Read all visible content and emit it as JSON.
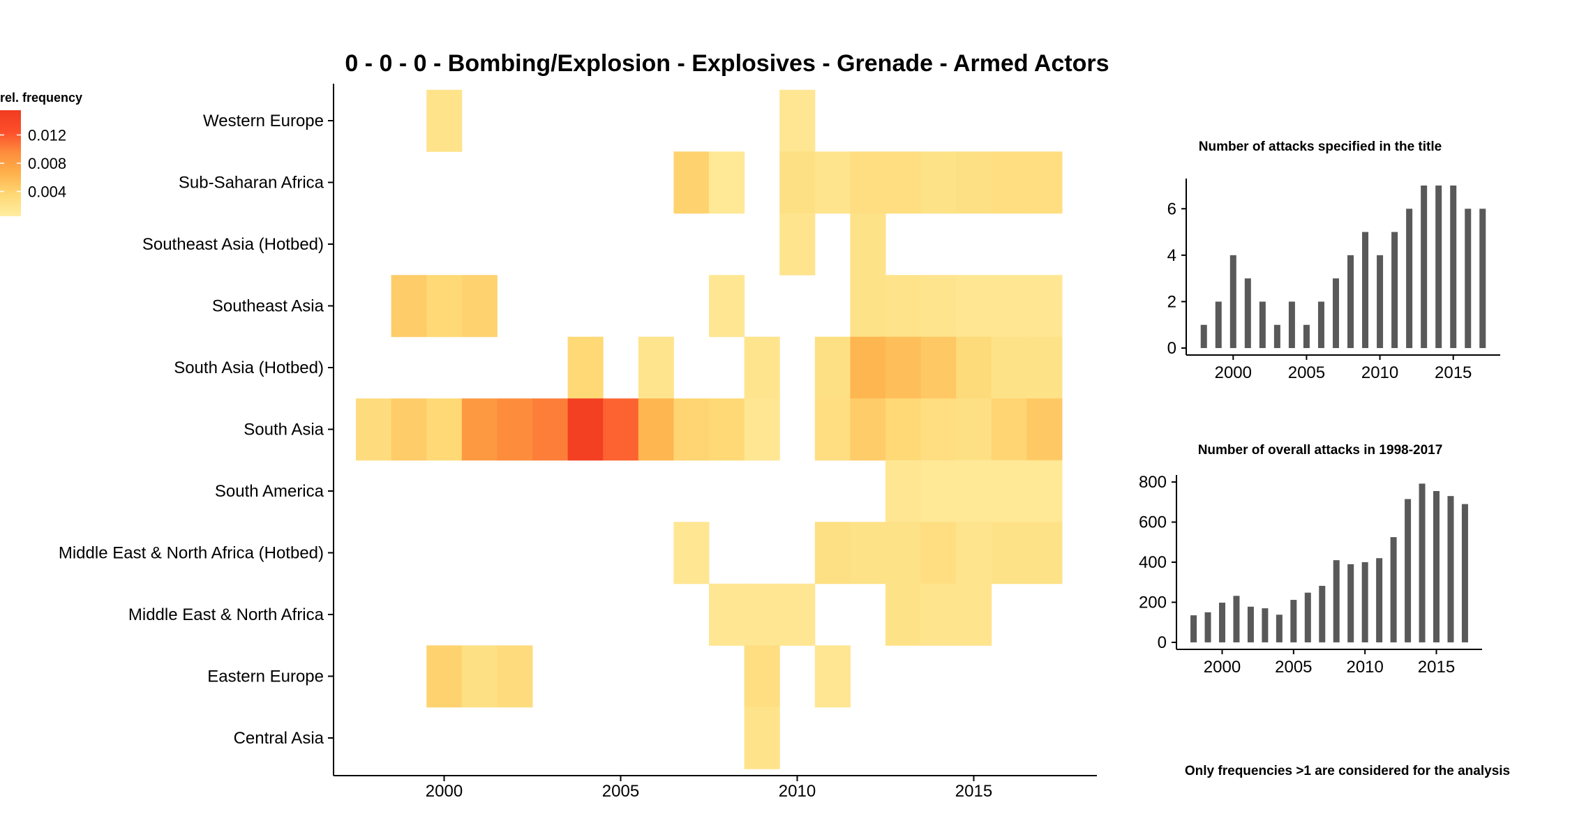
{
  "chart_data": [
    {
      "type": "heatmap",
      "title": "0 - 0 - 0 - Bombing/Explosion - Explosives - Grenade - Armed Actors",
      "xlabel": "",
      "ylabel": "",
      "x_ticks": [
        2000,
        2005,
        2010,
        2015
      ],
      "xlim": [
        1997.5,
        2017.5
      ],
      "regions": [
        "Western Europe",
        "Sub-Saharan Africa",
        "Southeast Asia (Hotbed)",
        "Southeast Asia",
        "South Asia (Hotbed)",
        "South Asia",
        "South America",
        "Middle East & North Africa (Hotbed)",
        "Middle East & North Africa",
        "Eastern Europe",
        "Central Asia"
      ],
      "cells": [
        {
          "region": "Western Europe",
          "values": {
            "2000": 0.002,
            "2010": 0.0015
          }
        },
        {
          "region": "Sub-Saharan Africa",
          "values": {
            "2007": 0.004,
            "2008": 0.0012,
            "2010": 0.0025,
            "2011": 0.0018,
            "2012": 0.0028,
            "2013": 0.0028,
            "2014": 0.0022,
            "2015": 0.0025,
            "2016": 0.0028,
            "2017": 0.0028
          }
        },
        {
          "region": "Southeast Asia (Hotbed)",
          "values": {
            "2010": 0.0018,
            "2012": 0.0022
          }
        },
        {
          "region": "Southeast Asia",
          "values": {
            "1999": 0.0045,
            "2000": 0.0035,
            "2001": 0.004,
            "2008": 0.0015,
            "2012": 0.0022,
            "2013": 0.002,
            "2014": 0.0018,
            "2015": 0.0015,
            "2016": 0.0015,
            "2017": 0.0015
          }
        },
        {
          "region": "South Asia (Hotbed)",
          "values": {
            "2004": 0.0035,
            "2006": 0.0018,
            "2009": 0.0018,
            "2011": 0.0025,
            "2012": 0.0062,
            "2013": 0.0055,
            "2014": 0.0048,
            "2015": 0.0032,
            "2016": 0.0022,
            "2017": 0.0022
          }
        },
        {
          "region": "South Asia",
          "values": {
            "1998": 0.003,
            "1999": 0.0045,
            "2000": 0.0035,
            "2001": 0.0085,
            "2002": 0.0095,
            "2003": 0.0102,
            "2004": 0.0148,
            "2005": 0.0115,
            "2006": 0.0062,
            "2007": 0.0038,
            "2008": 0.0035,
            "2009": 0.0015,
            "2011": 0.0028,
            "2012": 0.0045,
            "2013": 0.0035,
            "2014": 0.0028,
            "2015": 0.0025,
            "2016": 0.0038,
            "2017": 0.0048
          }
        },
        {
          "region": "South America",
          "values": {
            "2013": 0.0015,
            "2014": 0.0012,
            "2015": 0.0012,
            "2016": 0.0012,
            "2017": 0.0012
          }
        },
        {
          "region": "Middle East & North Africa (Hotbed)",
          "values": {
            "2007": 0.0015,
            "2011": 0.0025,
            "2012": 0.0022,
            "2013": 0.0022,
            "2014": 0.0028,
            "2015": 0.0018,
            "2016": 0.0022,
            "2017": 0.0022
          }
        },
        {
          "region": "Middle East & North Africa",
          "values": {
            "2008": 0.0015,
            "2009": 0.0015,
            "2010": 0.0015,
            "2013": 0.0022,
            "2014": 0.0018,
            "2015": 0.0018
          }
        },
        {
          "region": "Eastern Europe",
          "values": {
            "2000": 0.004,
            "2001": 0.0025,
            "2002": 0.003,
            "2009": 0.0028,
            "2011": 0.0015
          }
        },
        {
          "region": "Central Asia",
          "values": {
            "2009": 0.002
          }
        }
      ],
      "legend": {
        "title": "rel. frequency",
        "ticks": [
          "0.012",
          "0.008",
          "0.004"
        ],
        "tick_values": [
          0.012,
          0.008,
          0.004
        ],
        "range": [
          0.0005,
          0.0155
        ],
        "placement": "top-left",
        "colors": [
          "#FFEDA0",
          "#FED976",
          "#FEB24C",
          "#FD8D3C",
          "#FC4E2A",
          "#F03B20"
        ]
      },
      "grid": false
    },
    {
      "type": "bar",
      "title": "Number of attacks specified in the title",
      "x": [
        1998,
        1999,
        2000,
        2001,
        2002,
        2003,
        2004,
        2005,
        2006,
        2007,
        2008,
        2009,
        2010,
        2011,
        2012,
        2013,
        2014,
        2015,
        2016,
        2017
      ],
      "values": [
        1,
        2,
        4,
        3,
        2,
        1,
        2,
        1,
        2,
        3,
        4,
        5,
        4,
        5,
        6,
        7,
        7,
        7,
        6,
        6
      ],
      "x_ticks": [
        2000,
        2005,
        2010,
        2015
      ],
      "y_ticks": [
        0,
        2,
        4,
        6
      ],
      "xlim": [
        1996.8,
        2018.2
      ],
      "ylim": [
        -0.3,
        7.3
      ],
      "bar_color": "#595959"
    },
    {
      "type": "bar",
      "title": "Number of overall attacks in 1998-2017",
      "x": [
        1998,
        1999,
        2000,
        2001,
        2002,
        2003,
        2004,
        2005,
        2006,
        2007,
        2008,
        2009,
        2010,
        2011,
        2012,
        2013,
        2014,
        2015,
        2016,
        2017
      ],
      "values": [
        135,
        150,
        198,
        232,
        178,
        170,
        138,
        212,
        248,
        282,
        410,
        390,
        400,
        420,
        525,
        715,
        792,
        755,
        730,
        690
      ],
      "x_ticks": [
        2000,
        2005,
        2010,
        2015
      ],
      "y_ticks": [
        0,
        200,
        400,
        600,
        800
      ],
      "xlim": [
        1996.8,
        2018.2
      ],
      "ylim": [
        -35,
        835
      ],
      "bar_color": "#595959"
    }
  ],
  "note": "Only frequencies >1 are considered for the analysis"
}
